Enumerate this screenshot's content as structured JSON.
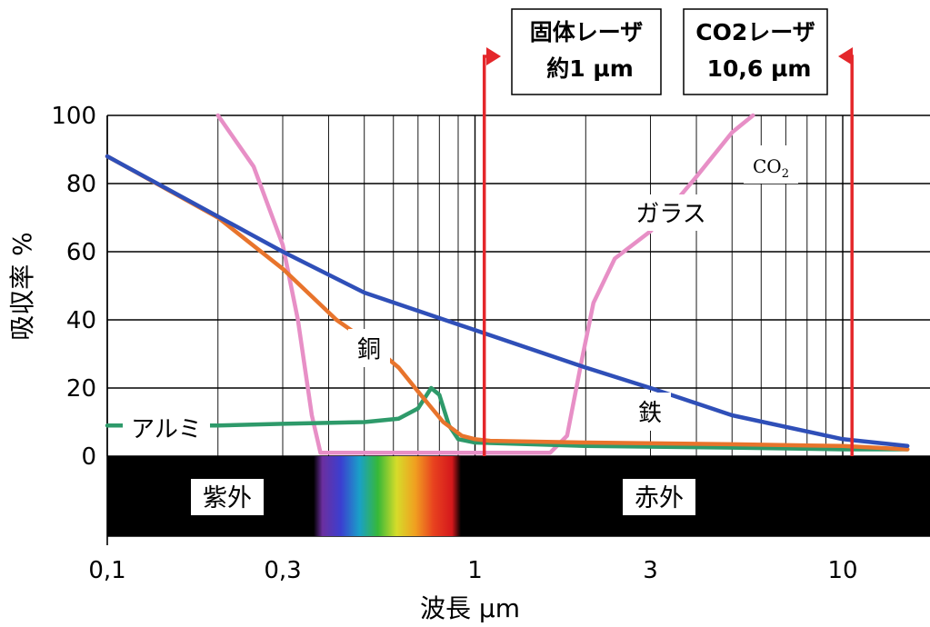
{
  "chart_data": {
    "type": "line",
    "x_scale": "log",
    "xlabel": "波長 µm",
    "ylabel": "吸収率 %",
    "xlim": [
      0.1,
      25
    ],
    "ylim": [
      0,
      100
    ],
    "x_ticks": [
      {
        "value": 0.1,
        "label": "0,1"
      },
      {
        "value": 0.3,
        "label": "0,3"
      },
      {
        "value": 1,
        "label": "1"
      },
      {
        "value": 3,
        "label": "3"
      },
      {
        "value": 10,
        "label": "10"
      }
    ],
    "y_ticks": [
      {
        "value": 0,
        "label": "0"
      },
      {
        "value": 20,
        "label": "20"
      },
      {
        "value": 40,
        "label": "40"
      },
      {
        "value": 60,
        "label": "60"
      },
      {
        "value": 80,
        "label": "80"
      },
      {
        "value": 100,
        "label": "100"
      }
    ],
    "grid": true,
    "series": [
      {
        "name": "鉄",
        "color": "#2f4fb8",
        "points": [
          [
            0.1,
            88
          ],
          [
            0.3,
            60
          ],
          [
            0.5,
            48
          ],
          [
            1,
            37
          ],
          [
            2,
            26
          ],
          [
            3,
            20
          ],
          [
            5,
            12
          ],
          [
            10,
            5
          ],
          [
            15,
            3
          ]
        ]
      },
      {
        "name": "銅",
        "color": "#e8742c",
        "points": [
          [
            0.1,
            88
          ],
          [
            0.2,
            70
          ],
          [
            0.3,
            55
          ],
          [
            0.42,
            40
          ],
          [
            0.52,
            33
          ],
          [
            0.62,
            26
          ],
          [
            0.7,
            19
          ],
          [
            0.82,
            10
          ],
          [
            0.92,
            6
          ],
          [
            1,
            5
          ],
          [
            1.1,
            4.5
          ],
          [
            2,
            4
          ],
          [
            5,
            3.5
          ],
          [
            10,
            3
          ],
          [
            15,
            2
          ]
        ]
      },
      {
        "name": "アルミ",
        "color": "#2e9a6a",
        "points": [
          [
            0.1,
            9
          ],
          [
            0.2,
            9
          ],
          [
            0.3,
            9.5
          ],
          [
            0.5,
            10
          ],
          [
            0.62,
            11
          ],
          [
            0.7,
            14
          ],
          [
            0.76,
            20
          ],
          [
            0.8,
            18
          ],
          [
            0.85,
            9
          ],
          [
            0.9,
            5
          ],
          [
            1,
            4
          ],
          [
            2,
            3
          ],
          [
            5,
            2.5
          ],
          [
            10,
            2
          ],
          [
            15,
            2
          ]
        ]
      },
      {
        "name": "ガラス",
        "color": "#e78fc6",
        "points": [
          [
            0.2,
            100
          ],
          [
            0.25,
            85
          ],
          [
            0.3,
            62
          ],
          [
            0.33,
            40
          ],
          [
            0.36,
            12
          ],
          [
            0.38,
            1
          ],
          [
            0.5,
            1
          ],
          [
            1,
            1
          ],
          [
            1.6,
            1
          ],
          [
            1.78,
            6
          ],
          [
            1.95,
            28
          ],
          [
            2.1,
            45
          ],
          [
            2.4,
            58
          ],
          [
            3,
            66
          ],
          [
            4,
            82
          ],
          [
            5,
            95
          ],
          [
            5.7,
            100
          ]
        ]
      }
    ],
    "series_labels": [
      {
        "series": "鉄",
        "text": "鉄"
      },
      {
        "series": "銅",
        "text": "銅"
      },
      {
        "series": "アルミ",
        "text": "アルミ"
      },
      {
        "series": "ガラス",
        "text": "ガラス"
      }
    ],
    "bands": [
      {
        "name": "紫外",
        "label": "紫外"
      },
      {
        "name": "赤外",
        "label": "赤外"
      }
    ],
    "spectrum_colors": [
      "#6b2fa0",
      "#3b3fd0",
      "#1aa0c8",
      "#37b838",
      "#d6dc2a",
      "#f0a020",
      "#e8421f",
      "#d4181c"
    ],
    "markers": [
      {
        "name": "固体レーザ",
        "x": 1.06,
        "lines": [
          "固体レーザ",
          "約1 µm"
        ],
        "color": "#e4272b"
      },
      {
        "name": "CO2レーザ",
        "x": 10.6,
        "lines": [
          "CO2レーザ",
          "10,6 µm"
        ],
        "color": "#e4272b"
      }
    ],
    "annotations": [
      {
        "text": "CO",
        "subscript": "2"
      }
    ]
  }
}
